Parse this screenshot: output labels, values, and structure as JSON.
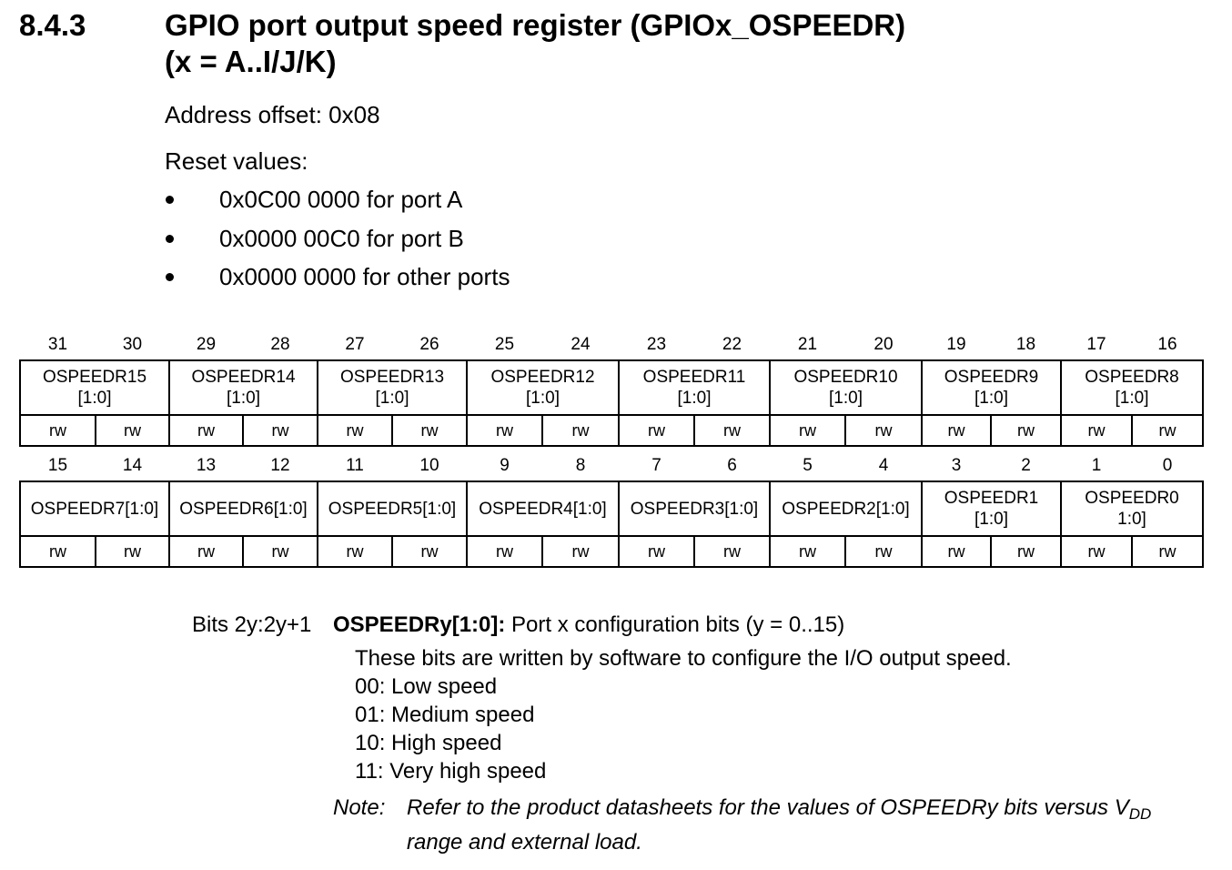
{
  "section": {
    "number": "8.4.3",
    "title_line1": "GPIO port output speed register (GPIOx_OSPEEDR)",
    "title_line2": "(x = A..I/J/K)"
  },
  "address_offset": "Address offset: 0x08",
  "reset_values": {
    "label": "Reset values:",
    "items": [
      "0x0C00 0000 for port A",
      "0x0000 00C0 for port B",
      "0x0000 0000 for other ports"
    ]
  },
  "register_high": {
    "bit_numbers": [
      "31",
      "30",
      "29",
      "28",
      "27",
      "26",
      "25",
      "24",
      "23",
      "22",
      "21",
      "20",
      "19",
      "18",
      "17",
      "16"
    ],
    "fields": [
      {
        "name": "OSPEEDR15",
        "range": "[1:0]"
      },
      {
        "name": "OSPEEDR14",
        "range": "[1:0]"
      },
      {
        "name": "OSPEEDR13",
        "range": "[1:0]"
      },
      {
        "name": "OSPEEDR12",
        "range": "[1:0]"
      },
      {
        "name": "OSPEEDR11",
        "range": "[1:0]"
      },
      {
        "name": "OSPEEDR10",
        "range": "[1:0]"
      },
      {
        "name": "OSPEEDR9",
        "range": "[1:0]"
      },
      {
        "name": "OSPEEDR8",
        "range": "[1:0]"
      }
    ],
    "access": [
      "rw",
      "rw",
      "rw",
      "rw",
      "rw",
      "rw",
      "rw",
      "rw",
      "rw",
      "rw",
      "rw",
      "rw",
      "rw",
      "rw",
      "rw",
      "rw"
    ]
  },
  "register_low": {
    "bit_numbers": [
      "15",
      "14",
      "13",
      "12",
      "11",
      "10",
      "9",
      "8",
      "7",
      "6",
      "5",
      "4",
      "3",
      "2",
      "1",
      "0"
    ],
    "fields": [
      {
        "name": "OSPEEDR7[1:0]",
        "range": ""
      },
      {
        "name": "OSPEEDR6[1:0]",
        "range": ""
      },
      {
        "name": "OSPEEDR5[1:0]",
        "range": ""
      },
      {
        "name": "OSPEEDR4[1:0]",
        "range": ""
      },
      {
        "name": "OSPEEDR3[1:0]",
        "range": ""
      },
      {
        "name": "OSPEEDR2[1:0]",
        "range": ""
      },
      {
        "name": "OSPEEDR1",
        "range": "[1:0]"
      },
      {
        "name": "OSPEEDR0",
        "range": "1:0]"
      }
    ],
    "access": [
      "rw",
      "rw",
      "rw",
      "rw",
      "rw",
      "rw",
      "rw",
      "rw",
      "rw",
      "rw",
      "rw",
      "rw",
      "rw",
      "rw",
      "rw",
      "rw"
    ]
  },
  "bit_description": {
    "bits_label": "Bits 2y:2y+1",
    "field_name": "OSPEEDRy[1:0]:",
    "field_desc": " Port x configuration bits (y = 0..15)",
    "lines": [
      "These bits are written by software to configure the I/O output speed.",
      "00: Low speed",
      "01: Medium speed",
      "10: High speed",
      "11: Very high speed"
    ],
    "note": {
      "label": "Note:",
      "line1": "Refer to the product datasheets for the values of OSPEEDRy bits versus V",
      "line1_sub": "DD",
      "line2": "range and external load."
    }
  }
}
